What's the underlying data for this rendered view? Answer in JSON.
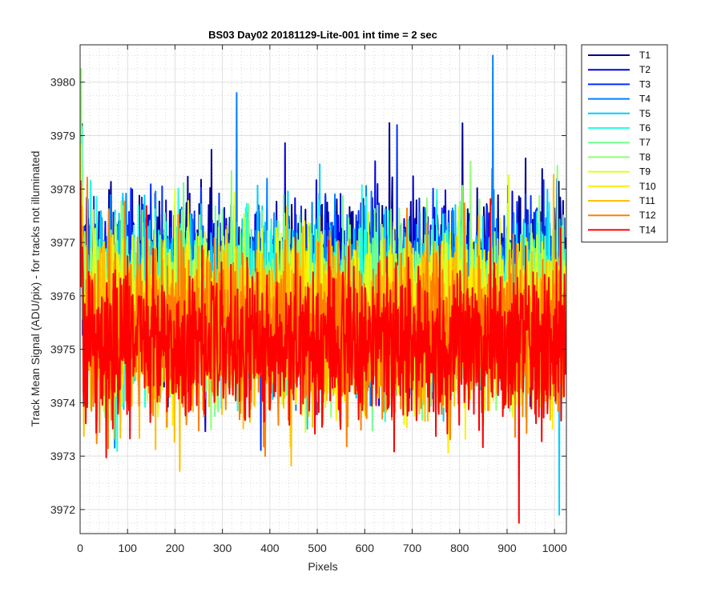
{
  "chart_data": {
    "type": "line",
    "title": "BS03 Day02 20181129-Lite-001 int time = 2 sec",
    "xlabel": "Pixels",
    "ylabel": "Track Mean Signal (ADU/pix) - for tracks not illuminated",
    "xlim": [
      0,
      1025
    ],
    "ylim": [
      3971.55,
      3980.7
    ],
    "xticks": [
      0,
      100,
      200,
      300,
      400,
      500,
      600,
      700,
      800,
      900,
      1000
    ],
    "yticks": [
      3972,
      3973,
      3974,
      3975,
      3976,
      3977,
      3978,
      3979,
      3980
    ],
    "grid": true,
    "minor_grid": true,
    "legend_location": "outside-top-right",
    "n_points": 1024,
    "series": [
      {
        "name": "T1",
        "color": "#00008f",
        "mean": 3976.3,
        "spread": 0.75
      },
      {
        "name": "T2",
        "color": "#0000df",
        "mean": 3976.2,
        "spread": 0.75
      },
      {
        "name": "T3",
        "color": "#0030ff",
        "mean": 3976.1,
        "spread": 0.75
      },
      {
        "name": "T4",
        "color": "#0080ff",
        "mean": 3976.0,
        "spread": 0.75
      },
      {
        "name": "T5",
        "color": "#00cfff",
        "mean": 3975.95,
        "spread": 0.75
      },
      {
        "name": "T6",
        "color": "#20ffdf",
        "mean": 3975.9,
        "spread": 0.75
      },
      {
        "name": "T7",
        "color": "#70ff8f",
        "mean": 3975.8,
        "spread": 0.75
      },
      {
        "name": "T8",
        "color": "#8fff70",
        "mean": 3975.7,
        "spread": 0.75
      },
      {
        "name": "T9",
        "color": "#dfff20",
        "mean": 3975.6,
        "spread": 0.75
      },
      {
        "name": "T10",
        "color": "#ffef00",
        "mean": 3975.5,
        "spread": 0.75
      },
      {
        "name": "T11",
        "color": "#ffbf00",
        "mean": 3975.4,
        "spread": 0.75
      },
      {
        "name": "T12",
        "color": "#ff8000",
        "mean": 3975.3,
        "spread": 0.75
      },
      {
        "name": "T14",
        "color": "#ff0000",
        "mean": 3975.1,
        "spread": 0.75
      }
    ],
    "notable_values": [
      {
        "series": "T4",
        "x": 870,
        "y": 3980.5
      },
      {
        "series": "T4",
        "x": 330,
        "y": 3979.8
      },
      {
        "series": "T14",
        "x": 925,
        "y": 3971.75
      },
      {
        "series": "T5",
        "x": 1010,
        "y": 3971.9
      }
    ]
  }
}
